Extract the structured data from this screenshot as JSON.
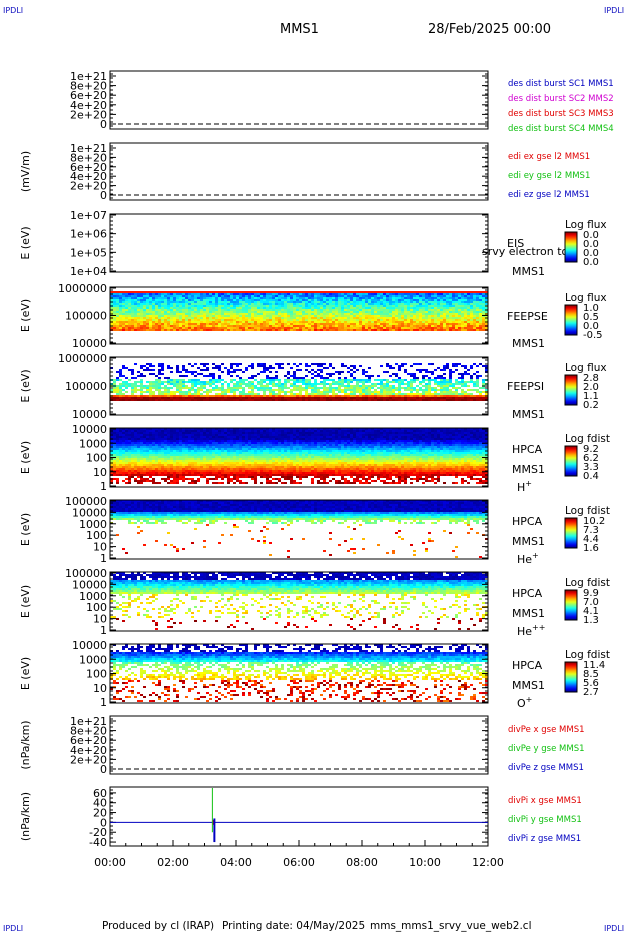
{
  "corner_label": "IPDLI",
  "header": {
    "spacecraft": "MMS1",
    "datetime": "28/Feb/2025 00:00"
  },
  "footer": {
    "producer": "Produced by cl (IRAP)",
    "printing_date": "Printing date: 04/May/2025",
    "filename": "mms_mms1_srvy_vue_web2.cl"
  },
  "colors": {
    "red": "#e00000",
    "green": "#10c010",
    "blue": "#0000c0",
    "magenta": "#d000d0"
  },
  "chart_data": [
    {
      "type": "line",
      "id": "des",
      "yticks": [
        "1e+21",
        "8e+20",
        "6e+20",
        "4e+20",
        "2e+20",
        "0"
      ],
      "ylabel": "",
      "legend": [
        {
          "text": "des dist burst SC1 MMS1",
          "color": "#0000c0"
        },
        {
          "text": "des dist burst SC2 MMS2",
          "color": "#d000d0"
        },
        {
          "text": "des dist burst SC3 MMS3",
          "color": "#e00000"
        },
        {
          "text": "des dist burst SC4 MMS4",
          "color": "#10c010"
        }
      ],
      "dashed_zero": true
    },
    {
      "type": "line",
      "id": "edi",
      "yticks": [
        "1e+21",
        "8e+20",
        "6e+20",
        "4e+20",
        "2e+20",
        "0"
      ],
      "ylabel": "(mV/m)",
      "legend": [
        {
          "text": "edi ex gse l2 MMS1",
          "color": "#e00000"
        },
        {
          "text": "edi ey gse l2 MMS1",
          "color": "#10c010"
        },
        {
          "text": "edi ez gse l2 MMS1",
          "color": "#0000c0"
        }
      ],
      "dashed_zero": true
    },
    {
      "type": "heatmap",
      "id": "eis",
      "ylabel": "E (eV)",
      "yticks": [
        "1e+07",
        "1e+06",
        "1e+05",
        "1e+04"
      ],
      "instrument": "EIS",
      "sc": "MMS1",
      "overlay": "srvy electron to",
      "cbar_title": "Log flux",
      "cbar_ticks": [
        "0.0",
        "0.0",
        "0.0",
        "0.0"
      ],
      "fill": "none"
    },
    {
      "type": "heatmap",
      "id": "feepse",
      "ylabel": "E (eV)",
      "yticks": [
        "1000000",
        "100000",
        "10000"
      ],
      "instrument": "FEEPSE",
      "sc": "MMS1",
      "cbar_title": "Log flux",
      "cbar_ticks": [
        "1.0",
        "0.5",
        "0.0",
        "-0.5"
      ],
      "fill": "feeps_e"
    },
    {
      "type": "heatmap",
      "id": "feepsi",
      "ylabel": "E (eV)",
      "yticks": [
        "1000000",
        "100000",
        "10000"
      ],
      "instrument": "FEEPSI",
      "sc": "MMS1",
      "cbar_title": "Log flux",
      "cbar_ticks": [
        "2.8",
        "2.0",
        "1.1",
        "0.2"
      ],
      "fill": "feeps_i"
    },
    {
      "type": "heatmap",
      "id": "hpca_h",
      "ylabel": "E (eV)",
      "yticks": [
        "10000",
        "1000",
        "100",
        "10",
        "1"
      ],
      "instrument": "HPCA",
      "sc": "MMS1",
      "species": "H",
      "species_sup": "+",
      "cbar_title": "Log fdist",
      "cbar_ticks": [
        "9.2",
        "6.2",
        "3.3",
        "0.4"
      ],
      "fill": "hpca_h"
    },
    {
      "type": "heatmap",
      "id": "hpca_he",
      "ylabel": "E (eV)",
      "yticks": [
        "100000",
        "10000",
        "1000",
        "100",
        "10",
        "1"
      ],
      "instrument": "HPCA",
      "sc": "MMS1",
      "species": "He",
      "species_sup": "+",
      "cbar_title": "Log fdist",
      "cbar_ticks": [
        "10.2",
        "7.3",
        "4.4",
        "1.6"
      ],
      "fill": "hpca_he"
    },
    {
      "type": "heatmap",
      "id": "hpca_hepp",
      "ylabel": "E (eV)",
      "yticks": [
        "100000",
        "10000",
        "1000",
        "100",
        "10",
        "1"
      ],
      "instrument": "HPCA",
      "sc": "MMS1",
      "species": "He",
      "species_sup": "++",
      "cbar_title": "Log fdist",
      "cbar_ticks": [
        "9.9",
        "7.0",
        "4.1",
        "1.3"
      ],
      "fill": "hpca_hepp"
    },
    {
      "type": "heatmap",
      "id": "hpca_o",
      "ylabel": "E (eV)",
      "yticks": [
        "10000",
        "1000",
        "100",
        "10",
        "1"
      ],
      "instrument": "HPCA",
      "sc": "MMS1",
      "species": "O",
      "species_sup": "+",
      "cbar_title": "Log fdist",
      "cbar_ticks": [
        "11.4",
        "8.5",
        "5.6",
        "2.7"
      ],
      "fill": "hpca_o"
    },
    {
      "type": "line",
      "id": "divpe",
      "yticks": [
        "1e+21",
        "8e+20",
        "6e+20",
        "4e+20",
        "2e+20",
        "0"
      ],
      "ylabel": "(nPa/km)",
      "legend": [
        {
          "text": "divPe x gse MMS1",
          "color": "#e00000"
        },
        {
          "text": "divPe y gse MMS1",
          "color": "#10c010"
        },
        {
          "text": "divPe z gse MMS1",
          "color": "#0000c0"
        }
      ],
      "dashed_zero": true
    },
    {
      "type": "line",
      "id": "divpi",
      "yticks": [
        "60",
        "40",
        "20",
        "0",
        "-20",
        "-40"
      ],
      "ylabel": "(nPa/km)",
      "ylim": [
        -48,
        72
      ],
      "legend": [
        {
          "text": "divPi x gse MMS1",
          "color": "#e00000"
        },
        {
          "text": "divPi y gse MMS1",
          "color": "#10c010"
        },
        {
          "text": "divPi z gse MMS1",
          "color": "#0000c0"
        }
      ],
      "spike_time_h": 3.25,
      "spike_values": {
        "x": [
          -5,
          5
        ],
        "y": [
          -20,
          70
        ],
        "z": [
          -40,
          8
        ]
      }
    }
  ],
  "x_axis": {
    "ticks": [
      "00:00",
      "02:00",
      "04:00",
      "06:00",
      "08:00",
      "10:00",
      "12:00"
    ]
  }
}
